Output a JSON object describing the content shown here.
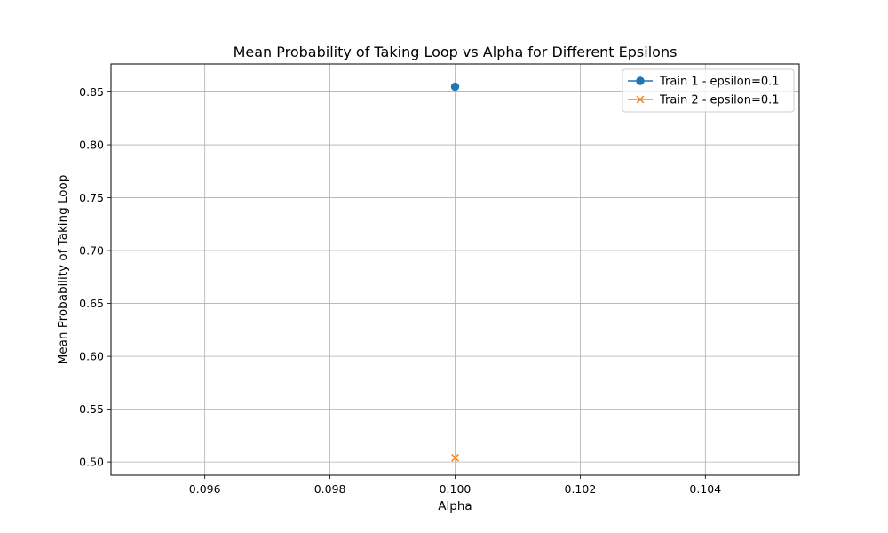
{
  "chart_data": {
    "type": "line",
    "title": "Mean Probability of Taking Loop vs Alpha for Different Epsilons",
    "xlabel": "Alpha",
    "ylabel": "Mean Probability of Taking Loop",
    "xlim": [
      0.0945,
      0.1055
    ],
    "ylim": [
      0.4875,
      0.8765
    ],
    "x_ticks": [
      0.096,
      0.098,
      0.1,
      0.102,
      0.104
    ],
    "x_tick_labels": [
      "0.096",
      "0.098",
      "0.100",
      "0.102",
      "0.104"
    ],
    "y_ticks": [
      0.5,
      0.55,
      0.6,
      0.65,
      0.7,
      0.75,
      0.8,
      0.85
    ],
    "y_tick_labels": [
      "0.50",
      "0.55",
      "0.60",
      "0.65",
      "0.70",
      "0.75",
      "0.80",
      "0.85"
    ],
    "grid": true,
    "legend_position": "top-right",
    "series": [
      {
        "name": "Train 1 - epsilon=0.1",
        "marker": "circle",
        "color": "#1f77b4",
        "x": [
          0.1
        ],
        "y": [
          0.855
        ]
      },
      {
        "name": "Train 2 - epsilon=0.1",
        "marker": "x",
        "color": "#ff7f0e",
        "x": [
          0.1
        ],
        "y": [
          0.504
        ]
      }
    ]
  }
}
